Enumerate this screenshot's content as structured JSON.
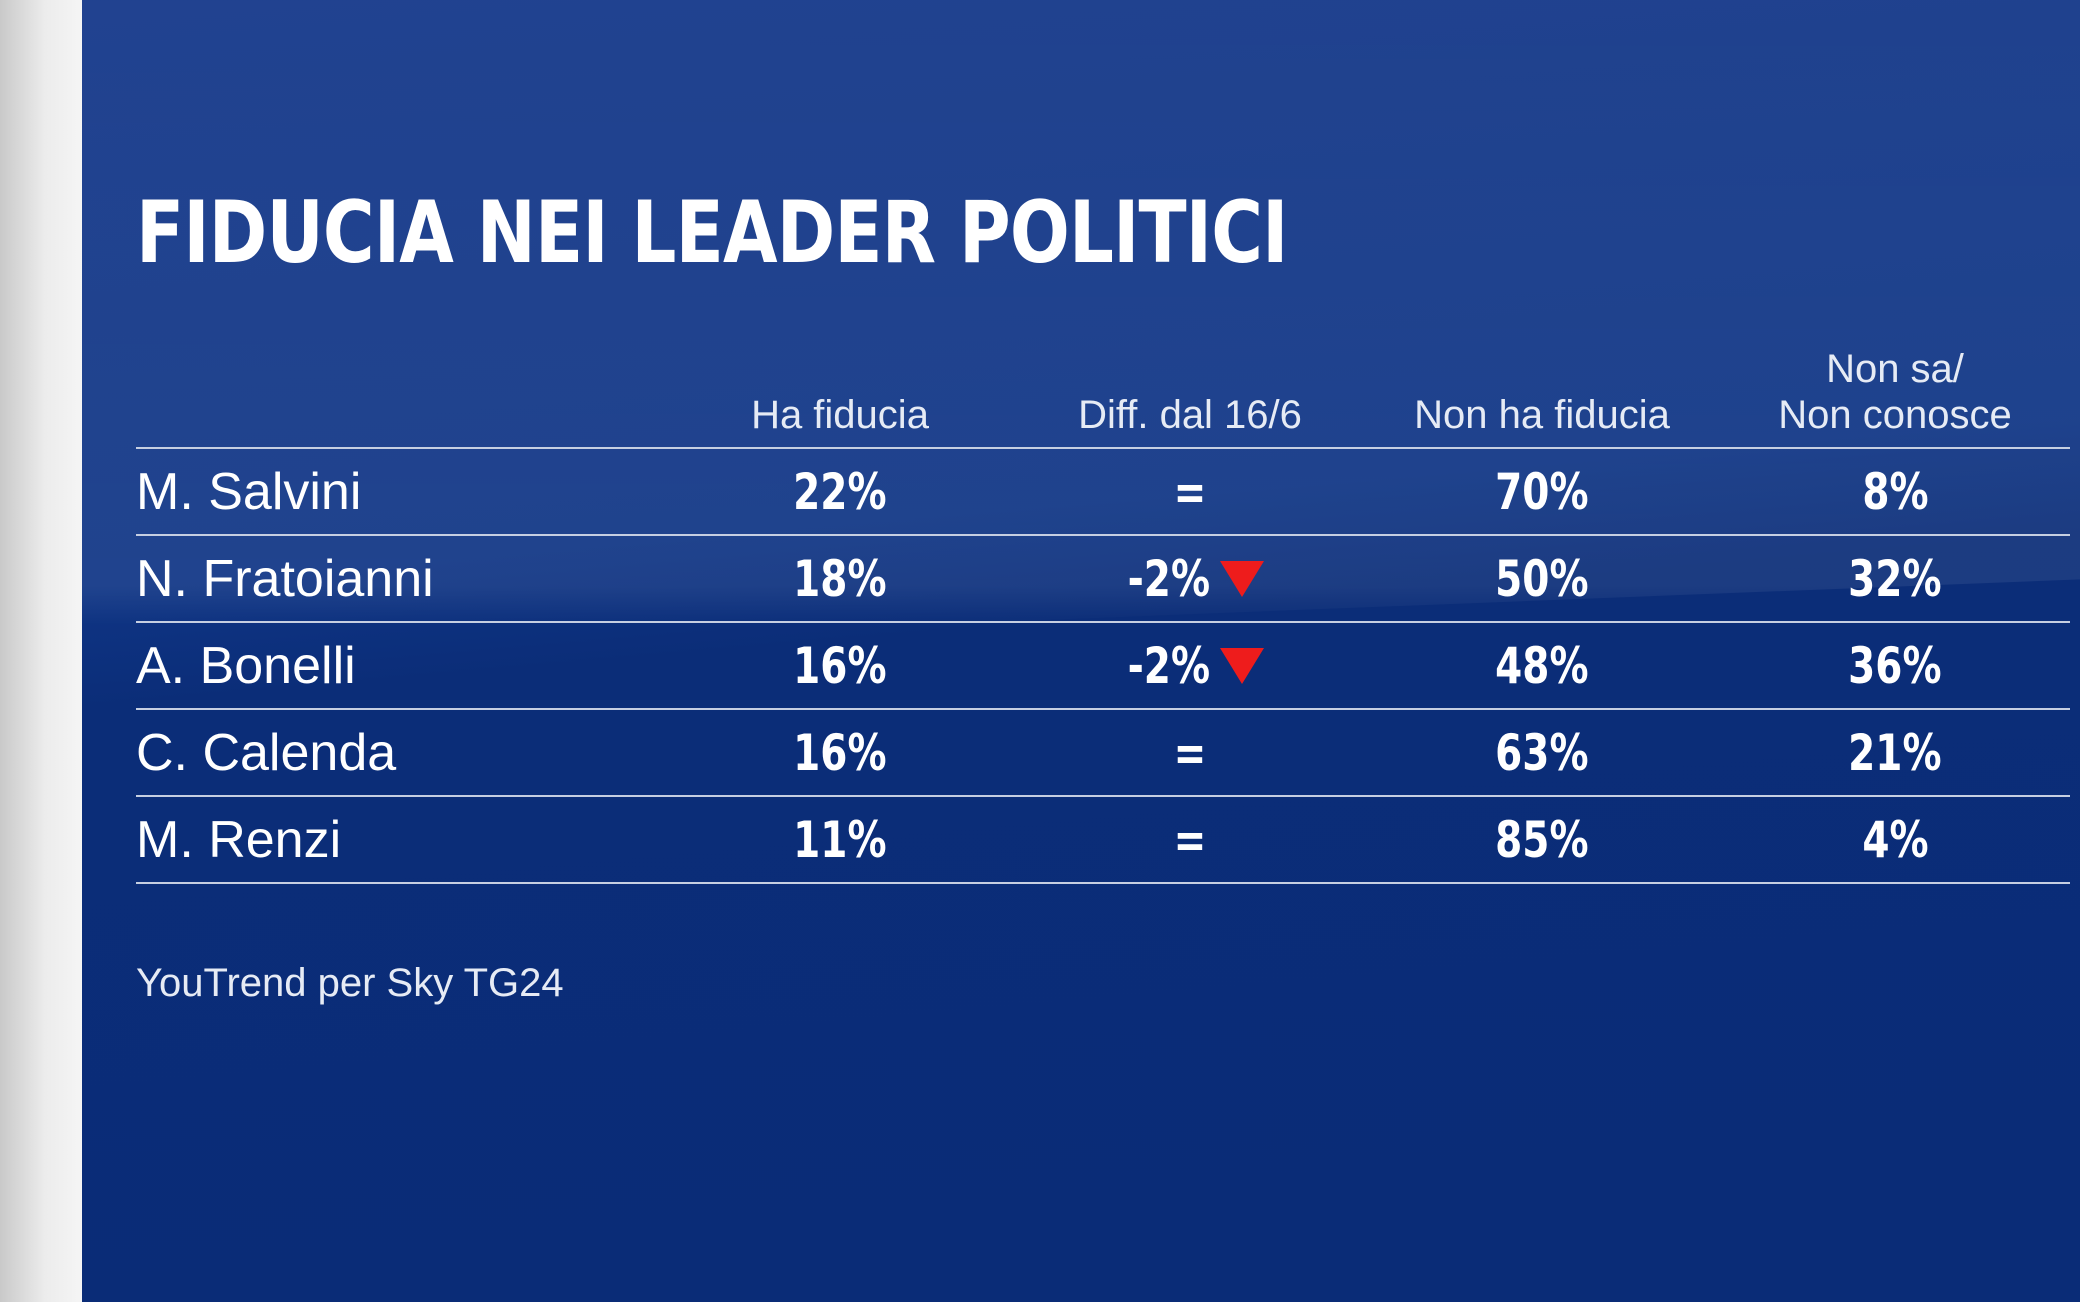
{
  "chart_data": {
    "type": "table",
    "title": "FIDUCIA NEI LEADER POLITICI",
    "columns": [
      {
        "key": "ha_fiducia",
        "lines": [
          "Ha fiducia"
        ]
      },
      {
        "key": "diff",
        "lines": [
          "Diff. dal 16/6"
        ]
      },
      {
        "key": "non_ha_fiducia",
        "lines": [
          "Non ha fiducia"
        ]
      },
      {
        "key": "non_sa",
        "lines": [
          "Non sa/",
          "Non conosce"
        ]
      }
    ],
    "rows": [
      {
        "name": "M. Salvini",
        "ha_fiducia": "22%",
        "diff": "=",
        "diff_trend": "none",
        "non_ha_fiducia": "70%",
        "non_sa": "8%"
      },
      {
        "name": "N. Fratoianni",
        "ha_fiducia": "18%",
        "diff": "-2%",
        "diff_trend": "down",
        "non_ha_fiducia": "50%",
        "non_sa": "32%"
      },
      {
        "name": "A. Bonelli",
        "ha_fiducia": "16%",
        "diff": "-2%",
        "diff_trend": "down",
        "non_ha_fiducia": "48%",
        "non_sa": "36%"
      },
      {
        "name": "C. Calenda",
        "ha_fiducia": "16%",
        "diff": "=",
        "diff_trend": "none",
        "non_ha_fiducia": "63%",
        "non_sa": "21%"
      },
      {
        "name": "M. Renzi",
        "ha_fiducia": "11%",
        "diff": "=",
        "diff_trend": "none",
        "non_ha_fiducia": "85%",
        "non_sa": "4%"
      }
    ],
    "source": "YouTrend per Sky TG24"
  },
  "colors": {
    "background": "#0a2d7d",
    "text": "#ffffff",
    "rule": "#c6cfe2",
    "down_arrow": "#ee1c1c"
  },
  "icons": {
    "down": "down-triangle-icon"
  }
}
